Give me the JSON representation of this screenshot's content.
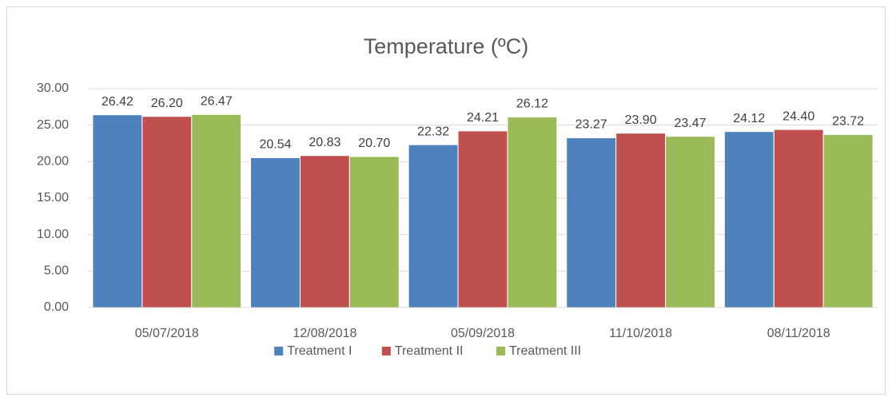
{
  "chart_data": {
    "type": "bar",
    "title": "Temperature (ºC)",
    "categories": [
      "05/07/2018",
      "12/08/2018",
      "05/09/2018",
      "11/10/2018",
      "08/11/2018"
    ],
    "series": [
      {
        "name": "Treatment I",
        "color": "#4f81bd",
        "values": [
          26.42,
          20.54,
          22.32,
          23.27,
          24.12
        ],
        "value_labels": [
          "26.42",
          "20.54",
          "22.32",
          "23.27",
          "24.12"
        ]
      },
      {
        "name": "Treatment II",
        "color": "#c0504d",
        "values": [
          26.2,
          20.83,
          24.21,
          23.9,
          24.4
        ],
        "value_labels": [
          "26.20",
          "20.83",
          "24.21",
          "23.90",
          "24.40"
        ]
      },
      {
        "name": "Treatment III",
        "color": "#9bbb59",
        "values": [
          26.47,
          20.7,
          26.12,
          23.47,
          23.72
        ],
        "value_labels": [
          "26.47",
          "20.70",
          "26.12",
          "23.47",
          "23.72"
        ]
      }
    ],
    "ylim": [
      0,
      30
    ],
    "yticks": [
      {
        "value": 0,
        "label": "0.00"
      },
      {
        "value": 5,
        "label": "5.00"
      },
      {
        "value": 10,
        "label": "10.00"
      },
      {
        "value": 15,
        "label": "15.00"
      },
      {
        "value": 20,
        "label": "20.00"
      },
      {
        "value": 25,
        "label": "25.00"
      },
      {
        "value": 30,
        "label": "30.00"
      }
    ],
    "grid": true,
    "legend": "bottom"
  }
}
